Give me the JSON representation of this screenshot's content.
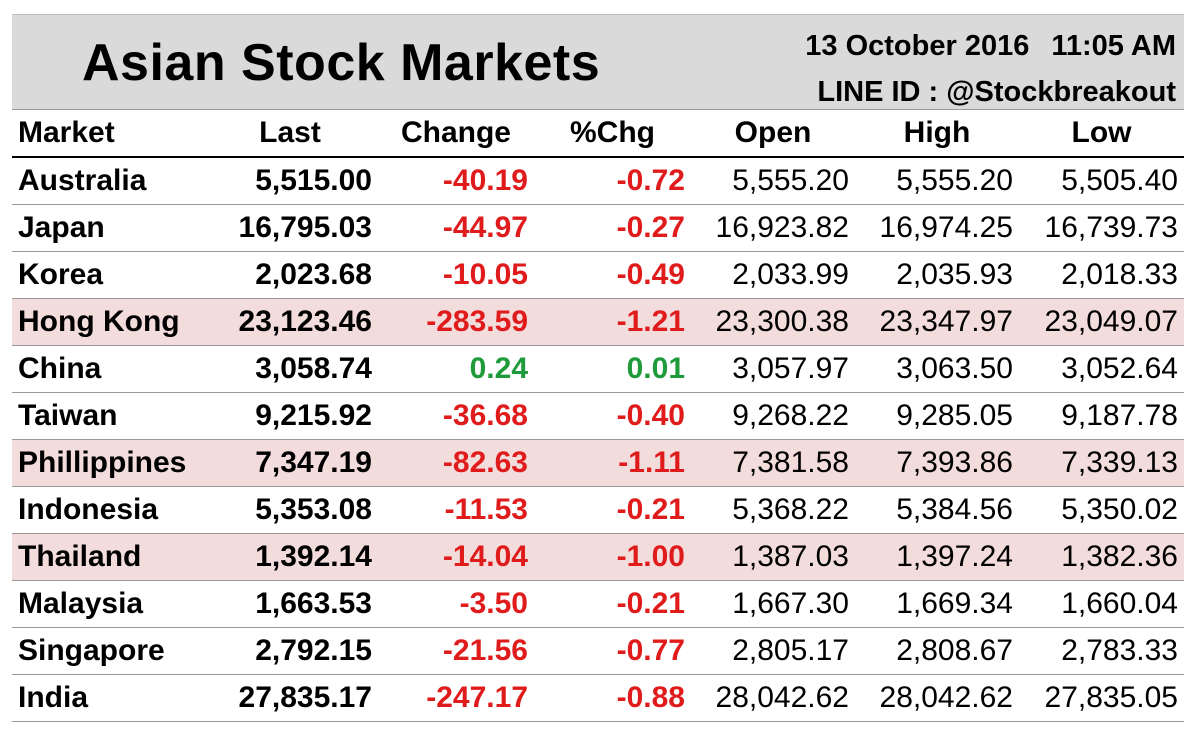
{
  "header": {
    "title": "Asian Stock Markets",
    "date": "13 October 2016",
    "time": "11:05 AM",
    "line_id": "LINE ID : @Stockbreakout"
  },
  "table": {
    "columns": [
      "Market",
      "Last",
      "Change",
      "%Chg",
      "Open",
      "High",
      "Low"
    ],
    "rows": [
      {
        "market": "Australia",
        "last": "5,515.00",
        "change": "-40.19",
        "pct": "-0.72",
        "open": "5,555.20",
        "high": "5,555.20",
        "low": "5,505.40",
        "highlight": false,
        "direction": "neg"
      },
      {
        "market": "Japan",
        "last": "16,795.03",
        "change": "-44.97",
        "pct": "-0.27",
        "open": "16,923.82",
        "high": "16,974.25",
        "low": "16,739.73",
        "highlight": false,
        "direction": "neg"
      },
      {
        "market": "Korea",
        "last": "2,023.68",
        "change": "-10.05",
        "pct": "-0.49",
        "open": "2,033.99",
        "high": "2,035.93",
        "low": "2,018.33",
        "highlight": false,
        "direction": "neg"
      },
      {
        "market": "Hong Kong",
        "last": "23,123.46",
        "change": "-283.59",
        "pct": "-1.21",
        "open": "23,300.38",
        "high": "23,347.97",
        "low": "23,049.07",
        "highlight": true,
        "direction": "neg"
      },
      {
        "market": "China",
        "last": "3,058.74",
        "change": "0.24",
        "pct": "0.01",
        "open": "3,057.97",
        "high": "3,063.50",
        "low": "3,052.64",
        "highlight": false,
        "direction": "pos"
      },
      {
        "market": "Taiwan",
        "last": "9,215.92",
        "change": "-36.68",
        "pct": "-0.40",
        "open": "9,268.22",
        "high": "9,285.05",
        "low": "9,187.78",
        "highlight": false,
        "direction": "neg"
      },
      {
        "market": "Phillippines",
        "last": "7,347.19",
        "change": "-82.63",
        "pct": "-1.11",
        "open": "7,381.58",
        "high": "7,393.86",
        "low": "7,339.13",
        "highlight": true,
        "direction": "neg"
      },
      {
        "market": "Indonesia",
        "last": "5,353.08",
        "change": "-11.53",
        "pct": "-0.21",
        "open": "5,368.22",
        "high": "5,384.56",
        "low": "5,350.02",
        "highlight": false,
        "direction": "neg"
      },
      {
        "market": "Thailand",
        "last": "1,392.14",
        "change": "-14.04",
        "pct": "-1.00",
        "open": "1,387.03",
        "high": "1,397.24",
        "low": "1,382.36",
        "highlight": true,
        "direction": "neg"
      },
      {
        "market": "Malaysia",
        "last": "1,663.53",
        "change": "-3.50",
        "pct": "-0.21",
        "open": "1,667.30",
        "high": "1,669.34",
        "low": "1,660.04",
        "highlight": false,
        "direction": "neg"
      },
      {
        "market": "Singapore",
        "last": "2,792.15",
        "change": "-21.56",
        "pct": "-0.77",
        "open": "2,805.17",
        "high": "2,808.67",
        "low": "2,783.33",
        "highlight": false,
        "direction": "neg"
      },
      {
        "market": "India",
        "last": "27,835.17",
        "change": "-247.17",
        "pct": "-0.88",
        "open": "28,042.62",
        "high": "28,042.62",
        "low": "27,835.05",
        "highlight": false,
        "direction": "neg"
      }
    ]
  },
  "colors": {
    "header_bg": "#dadada",
    "highlight_row": "#f3dcdc",
    "negative": "#e01b1b",
    "positive": "#1f9b3c"
  }
}
